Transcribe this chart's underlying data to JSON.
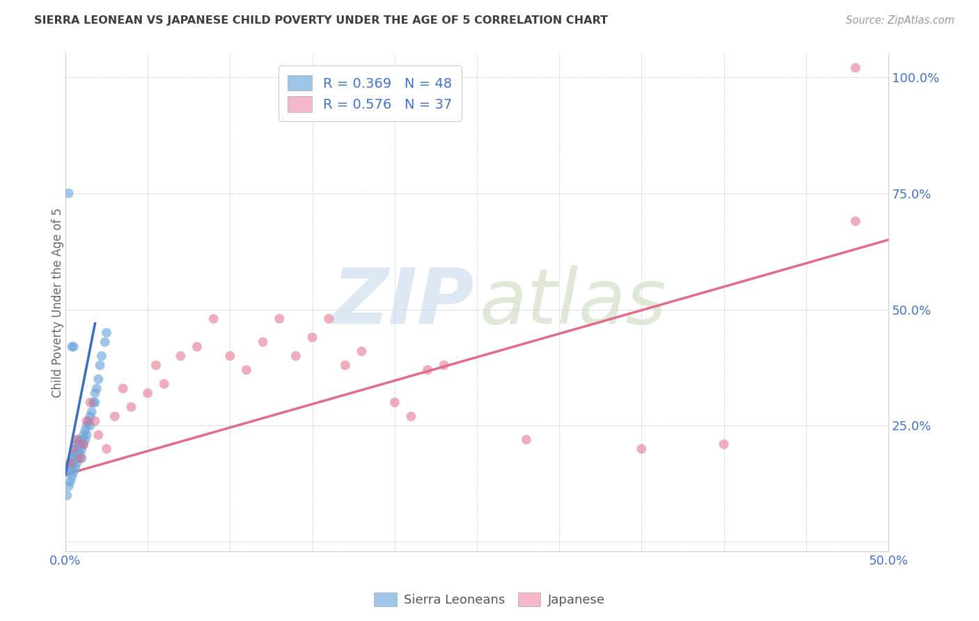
{
  "title": "SIERRA LEONEAN VS JAPANESE CHILD POVERTY UNDER THE AGE OF 5 CORRELATION CHART",
  "source": "Source: ZipAtlas.com",
  "ylabel": "Child Poverty Under the Age of 5",
  "xlim": [
    0,
    0.5
  ],
  "ylim": [
    -0.02,
    1.05
  ],
  "xtick_positions": [
    0.0,
    0.05,
    0.1,
    0.15,
    0.2,
    0.25,
    0.3,
    0.35,
    0.4,
    0.45,
    0.5
  ],
  "ytick_positions": [
    0.0,
    0.25,
    0.5,
    0.75,
    1.0
  ],
  "ytick_labels": [
    "",
    "25.0%",
    "50.0%",
    "75.0%",
    "100.0%"
  ],
  "xtick_labels": [
    "0.0%",
    "",
    "",
    "",
    "",
    "",
    "",
    "",
    "",
    "",
    "50.0%"
  ],
  "legend_items": [
    {
      "label": "R = 0.369   N = 48",
      "color": "#9fc5e8"
    },
    {
      "label": "R = 0.576   N = 37",
      "color": "#ea9999"
    }
  ],
  "bottom_legend": [
    "Sierra Leoneans",
    "Japanese"
  ],
  "sierra_color": "#6fa8dc",
  "japanese_color": "#e06c8a",
  "sierra_line_color": "#8ab0cc",
  "japanese_line_color": "#e06c8a",
  "text_color": "#4472c4",
  "title_color": "#3d3d3d",
  "grid_color": "#cccccc",
  "background": "#ffffff",
  "sierra_x": [
    0.001,
    0.001,
    0.002,
    0.002,
    0.003,
    0.003,
    0.004,
    0.004,
    0.004,
    0.005,
    0.005,
    0.005,
    0.006,
    0.006,
    0.006,
    0.007,
    0.007,
    0.007,
    0.008,
    0.008,
    0.008,
    0.009,
    0.009,
    0.01,
    0.01,
    0.01,
    0.011,
    0.011,
    0.012,
    0.012,
    0.013,
    0.013,
    0.014,
    0.015,
    0.015,
    0.016,
    0.017,
    0.018,
    0.018,
    0.019,
    0.02,
    0.021,
    0.022,
    0.024,
    0.025,
    0.002,
    0.004,
    0.005
  ],
  "sierra_y": [
    0.15,
    0.1,
    0.16,
    0.12,
    0.17,
    0.13,
    0.18,
    0.16,
    0.14,
    0.19,
    0.17,
    0.15,
    0.2,
    0.18,
    0.16,
    0.21,
    0.19,
    0.17,
    0.22,
    0.2,
    0.18,
    0.21,
    0.19,
    0.22,
    0.2,
    0.18,
    0.23,
    0.21,
    0.24,
    0.22,
    0.25,
    0.23,
    0.26,
    0.27,
    0.25,
    0.28,
    0.3,
    0.32,
    0.3,
    0.33,
    0.35,
    0.38,
    0.4,
    0.43,
    0.45,
    0.75,
    0.42,
    0.42
  ],
  "japanese_x": [
    0.003,
    0.005,
    0.007,
    0.009,
    0.011,
    0.013,
    0.015,
    0.018,
    0.02,
    0.025,
    0.03,
    0.035,
    0.04,
    0.05,
    0.055,
    0.06,
    0.07,
    0.08,
    0.09,
    0.1,
    0.11,
    0.12,
    0.13,
    0.14,
    0.15,
    0.16,
    0.17,
    0.18,
    0.2,
    0.21,
    0.22,
    0.23,
    0.28,
    0.35,
    0.4,
    0.48,
    0.48
  ],
  "japanese_y": [
    0.17,
    0.2,
    0.22,
    0.18,
    0.21,
    0.26,
    0.3,
    0.26,
    0.23,
    0.2,
    0.27,
    0.33,
    0.29,
    0.32,
    0.38,
    0.34,
    0.4,
    0.42,
    0.48,
    0.4,
    0.37,
    0.43,
    0.48,
    0.4,
    0.44,
    0.48,
    0.38,
    0.41,
    0.3,
    0.27,
    0.37,
    0.38,
    0.22,
    0.2,
    0.21,
    0.69,
    1.02
  ],
  "sierra_trend_x": [
    0.0,
    0.018
  ],
  "japanese_trend_x": [
    0.0,
    0.5
  ],
  "sierra_trend_y": [
    0.145,
    0.47
  ],
  "japanese_trend_y": [
    0.145,
    0.65
  ]
}
